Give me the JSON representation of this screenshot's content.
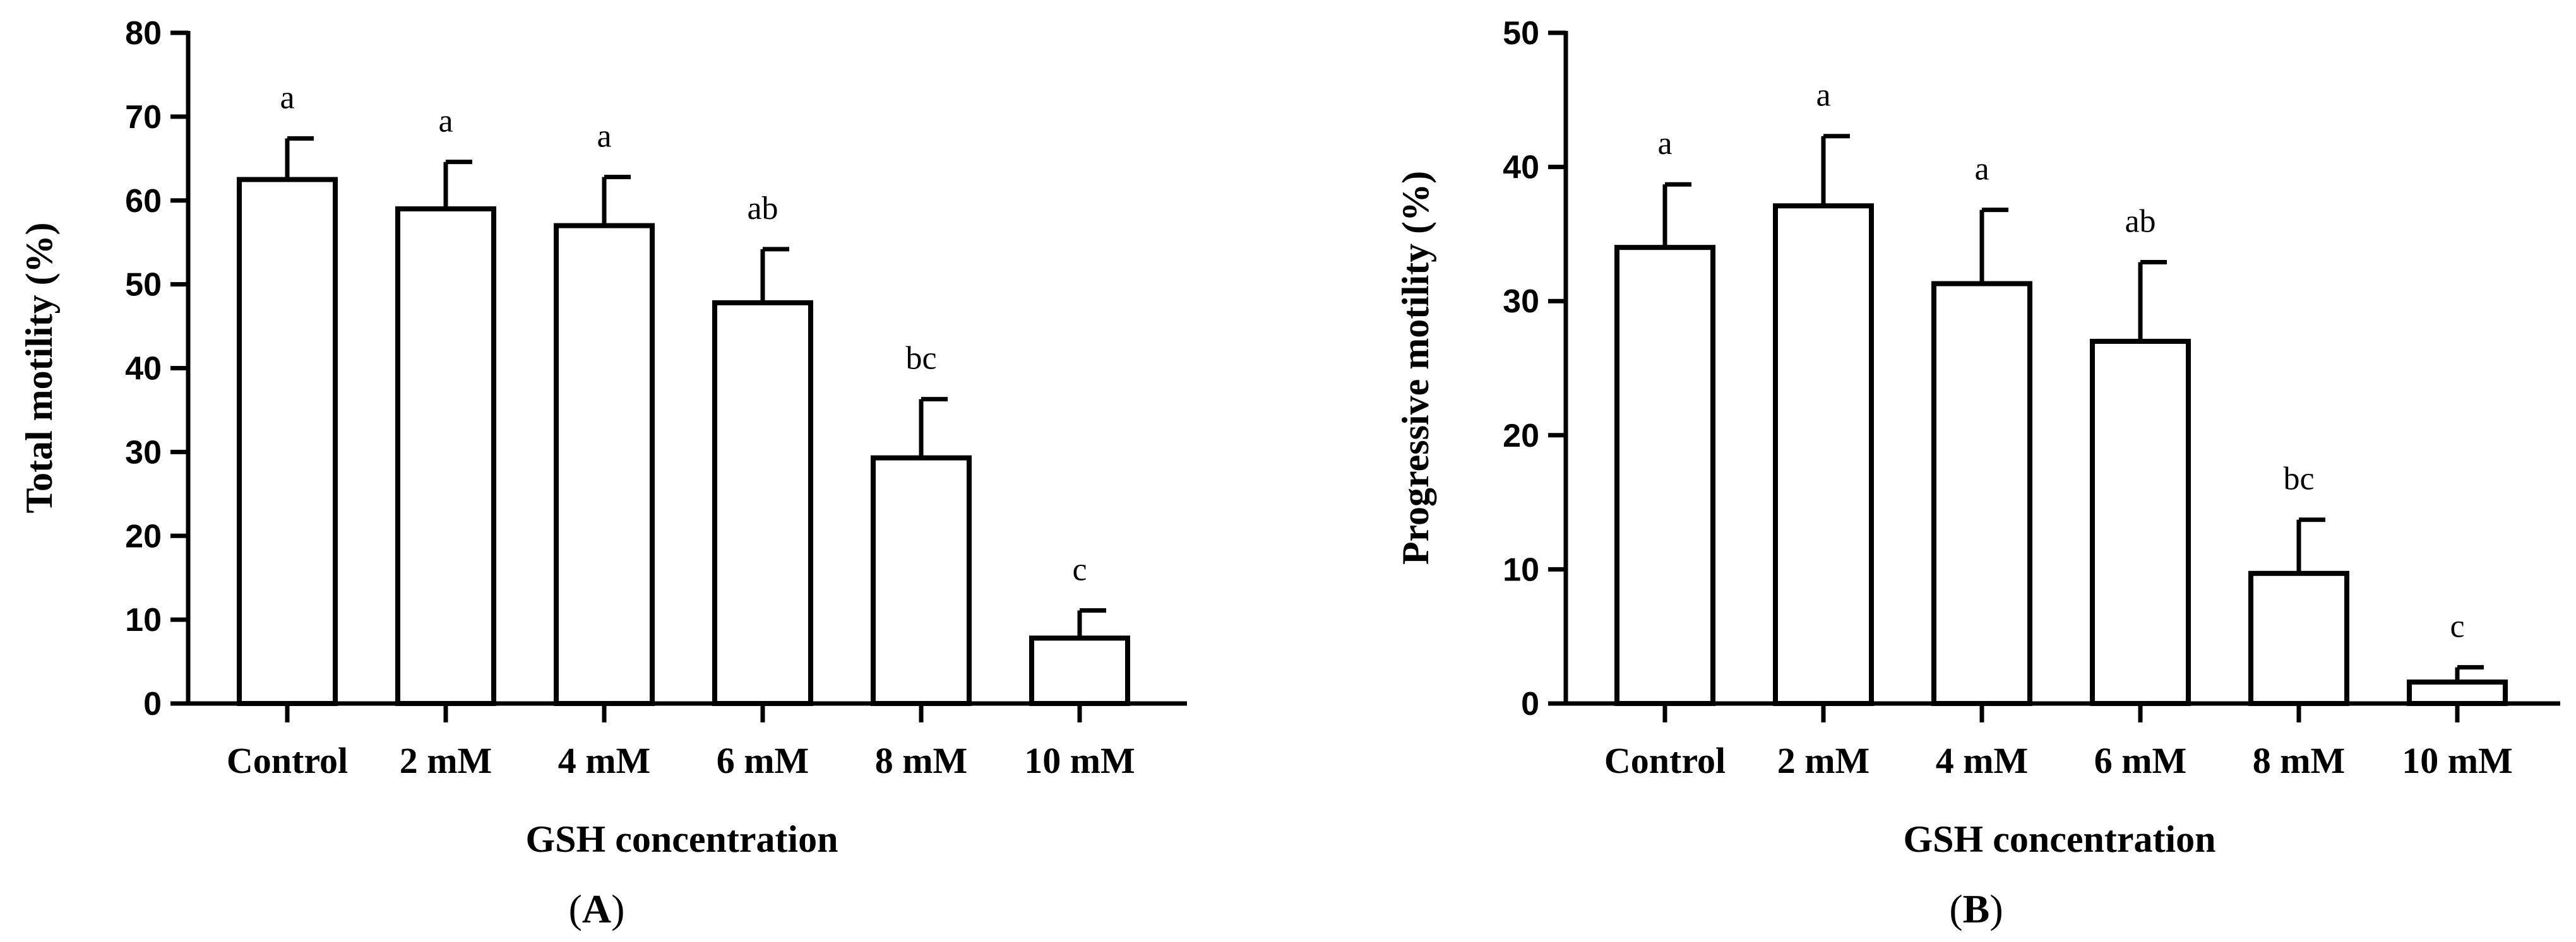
{
  "chart_data": [
    {
      "type": "bar",
      "panel": "A",
      "categories": [
        "Control",
        "2 mM",
        "4 mM",
        "6 mM",
        "8 mM",
        "10 mM"
      ],
      "values": [
        62.5,
        59.0,
        57.0,
        47.8,
        29.3,
        7.8
      ],
      "errors": [
        4.9,
        5.6,
        5.8,
        6.4,
        7.0,
        3.3
      ],
      "significance": [
        "a",
        "a",
        "a",
        "ab",
        "bc",
        "c"
      ],
      "xlabel": "GSH concentration",
      "ylabel": "Total motility (%)",
      "ylim": [
        0,
        80
      ],
      "yticks": [
        0,
        10,
        20,
        30,
        40,
        50,
        60,
        70,
        80
      ],
      "grid": false
    },
    {
      "type": "bar",
      "panel": "B",
      "categories": [
        "Control",
        "2 mM",
        "4 mM",
        "6 mM",
        "8 mM",
        "10 mM"
      ],
      "values": [
        34.0,
        37.1,
        31.3,
        27.0,
        9.7,
        1.6
      ],
      "errors": [
        4.7,
        5.2,
        5.5,
        5.9,
        4.0,
        1.1
      ],
      "significance": [
        "a",
        "a",
        "a",
        "ab",
        "bc",
        "c"
      ],
      "xlabel": "GSH concentration",
      "ylabel": "Progressive motility (%)",
      "ylim": [
        0,
        50
      ],
      "yticks": [
        0,
        10,
        20,
        30,
        40,
        50
      ],
      "grid": false
    }
  ],
  "panel_labels": {
    "A": {
      "open": "(",
      "letter": "A",
      "close": ")"
    },
    "B": {
      "open": "(",
      "letter": "B",
      "close": ")"
    }
  }
}
